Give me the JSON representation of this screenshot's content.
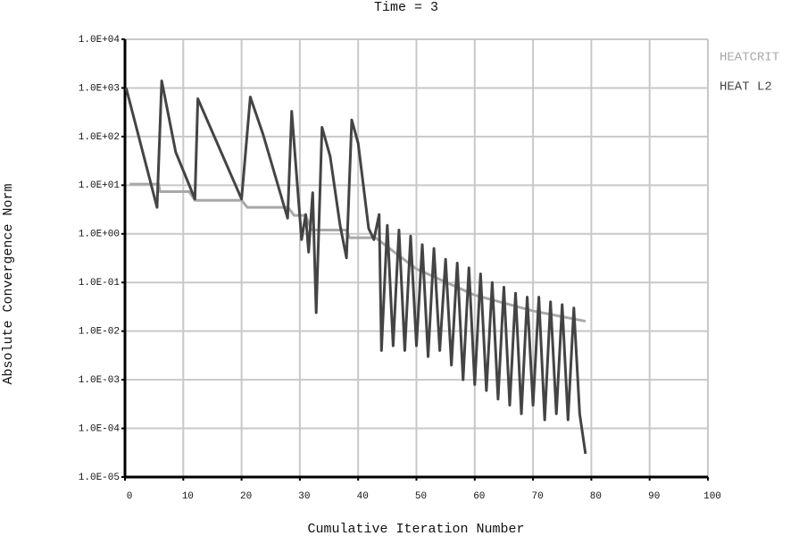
{
  "chart_data": {
    "type": "line",
    "title": "Time = 3",
    "x_label": "Cumulative Iteration Number",
    "y_label": "Absolute Convergence Norm",
    "log_y": true,
    "grid": true,
    "legend": "right-top",
    "xlim": [
      0,
      100
    ],
    "xticks": [
      0,
      10,
      20,
      30,
      40,
      50,
      60,
      70,
      80,
      90,
      100
    ],
    "ylim": [
      1e-05,
      10000
    ],
    "yticks": [
      {
        "value": 1e-05,
        "label": "1.0E-05"
      },
      {
        "value": 0.0001,
        "label": "1.0E-04"
      },
      {
        "value": 0.001,
        "label": "1.0E-03"
      },
      {
        "value": 0.01,
        "label": "1.0E-02"
      },
      {
        "value": 0.1,
        "label": "1.0E-01"
      },
      {
        "value": 1,
        "label": "1.0E+00"
      },
      {
        "value": 10,
        "label": "1.0E+01"
      },
      {
        "value": 100,
        "label": "1.0E+02"
      },
      {
        "value": 1000,
        "label": "1.0E+03"
      },
      {
        "value": 10000,
        "label": "1.0E+04"
      }
    ],
    "series": [
      {
        "name": "HEATCRIT",
        "color": "#a8a8a8",
        "x": [
          0.8,
          5.8,
          6,
          11,
          12,
          20,
          21,
          28,
          29,
          31,
          32,
          38,
          38.5,
          43,
          50,
          60,
          70,
          79
        ],
        "values": [
          10.5,
          10.5,
          7.4,
          7.4,
          4.9,
          4.9,
          3.5,
          3.5,
          2.4,
          2.4,
          1.2,
          1.2,
          0.83,
          0.83,
          0.19,
          0.055,
          0.026,
          0.016
        ]
      },
      {
        "name": "HEAT L2",
        "color": "#444444",
        "x": [
          0.2,
          5.5,
          6.3,
          8.7,
          12,
          12.5,
          20,
          21.5,
          23.7,
          27.9,
          28.6,
          29.5,
          30.3,
          31,
          31.5,
          32.2,
          32.8,
          33.8,
          35.2,
          36.9,
          38,
          38.9,
          40,
          41.8,
          42.7,
          43.6,
          44,
          45,
          46,
          47,
          48,
          49,
          50,
          51,
          52,
          53,
          54,
          55,
          56,
          57,
          58,
          59,
          60,
          61,
          62,
          63,
          64,
          65,
          66,
          67,
          68,
          69,
          70,
          71,
          72,
          73,
          74,
          75,
          76,
          77,
          78,
          79
        ],
        "values": [
          1000,
          3.5,
          1400,
          48,
          5.2,
          600,
          5.2,
          650,
          110,
          2.1,
          330,
          13,
          0.76,
          2.5,
          0.42,
          7,
          0.024,
          155,
          39,
          1.5,
          0.32,
          220,
          73,
          1.3,
          0.76,
          2.5,
          0.004,
          1.5,
          0.005,
          1.2,
          0.004,
          0.9,
          0.005,
          0.6,
          0.003,
          0.5,
          0.004,
          0.3,
          0.002,
          0.25,
          0.001,
          0.2,
          0.0008,
          0.15,
          0.0006,
          0.1,
          0.0004,
          0.08,
          0.0003,
          0.06,
          0.0002,
          0.05,
          0.0003,
          0.05,
          0.00015,
          0.04,
          0.0002,
          0.035,
          0.00015,
          0.03,
          0.0002,
          3e-05
        ]
      }
    ]
  }
}
